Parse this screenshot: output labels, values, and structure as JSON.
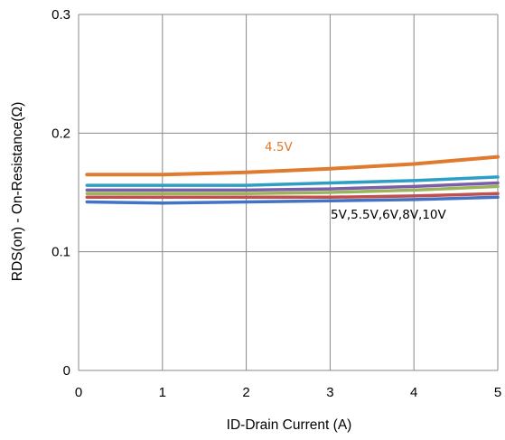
{
  "chart_data": {
    "type": "line",
    "title": "",
    "xlabel": "ID-Drain Current (A)",
    "ylabel": "RDS(on) - On-Resistance(Ω)",
    "xlim": [
      0,
      5
    ],
    "ylim": [
      0,
      0.3
    ],
    "x_ticks": [
      "0",
      "1",
      "2",
      "3",
      "4",
      "5"
    ],
    "y_ticks": [
      "0",
      "0.1",
      "0.2",
      "0.3"
    ],
    "grid": true,
    "legend": "none",
    "annotations": [
      {
        "text": "4.5V",
        "color": "#E07A2E"
      },
      {
        "text": "5V,5.5V,6V,8V,10V",
        "color": "#000000"
      }
    ],
    "series": [
      {
        "color": "#E07A2E",
        "x": [
          0.1,
          1.0,
          2.0,
          3.0,
          4.0,
          5.0
        ],
        "y": [
          0.165,
          0.165,
          0.167,
          0.17,
          0.174,
          0.18
        ]
      },
      {
        "color": "#2E9FC4",
        "x": [
          0.1,
          1.0,
          2.0,
          3.0,
          4.0,
          5.0
        ],
        "y": [
          0.156,
          0.156,
          0.156,
          0.158,
          0.16,
          0.163
        ]
      },
      {
        "color": "#7A5FA8",
        "x": [
          0.1,
          1.0,
          2.0,
          3.0,
          4.0,
          5.0
        ],
        "y": [
          0.152,
          0.152,
          0.152,
          0.153,
          0.155,
          0.158
        ]
      },
      {
        "color": "#9BB45C",
        "x": [
          0.1,
          1.0,
          2.0,
          3.0,
          4.0,
          5.0
        ],
        "y": [
          0.149,
          0.149,
          0.149,
          0.15,
          0.152,
          0.155
        ]
      },
      {
        "color": "#C0504D",
        "x": [
          0.1,
          1.0,
          2.0,
          3.0,
          4.0,
          5.0
        ],
        "y": [
          0.146,
          0.146,
          0.146,
          0.146,
          0.147,
          0.149
        ]
      },
      {
        "color": "#4472C4",
        "x": [
          0.1,
          1.0,
          2.0,
          3.0,
          4.0,
          5.0
        ],
        "y": [
          0.142,
          0.141,
          0.142,
          0.143,
          0.144,
          0.146
        ]
      }
    ]
  }
}
